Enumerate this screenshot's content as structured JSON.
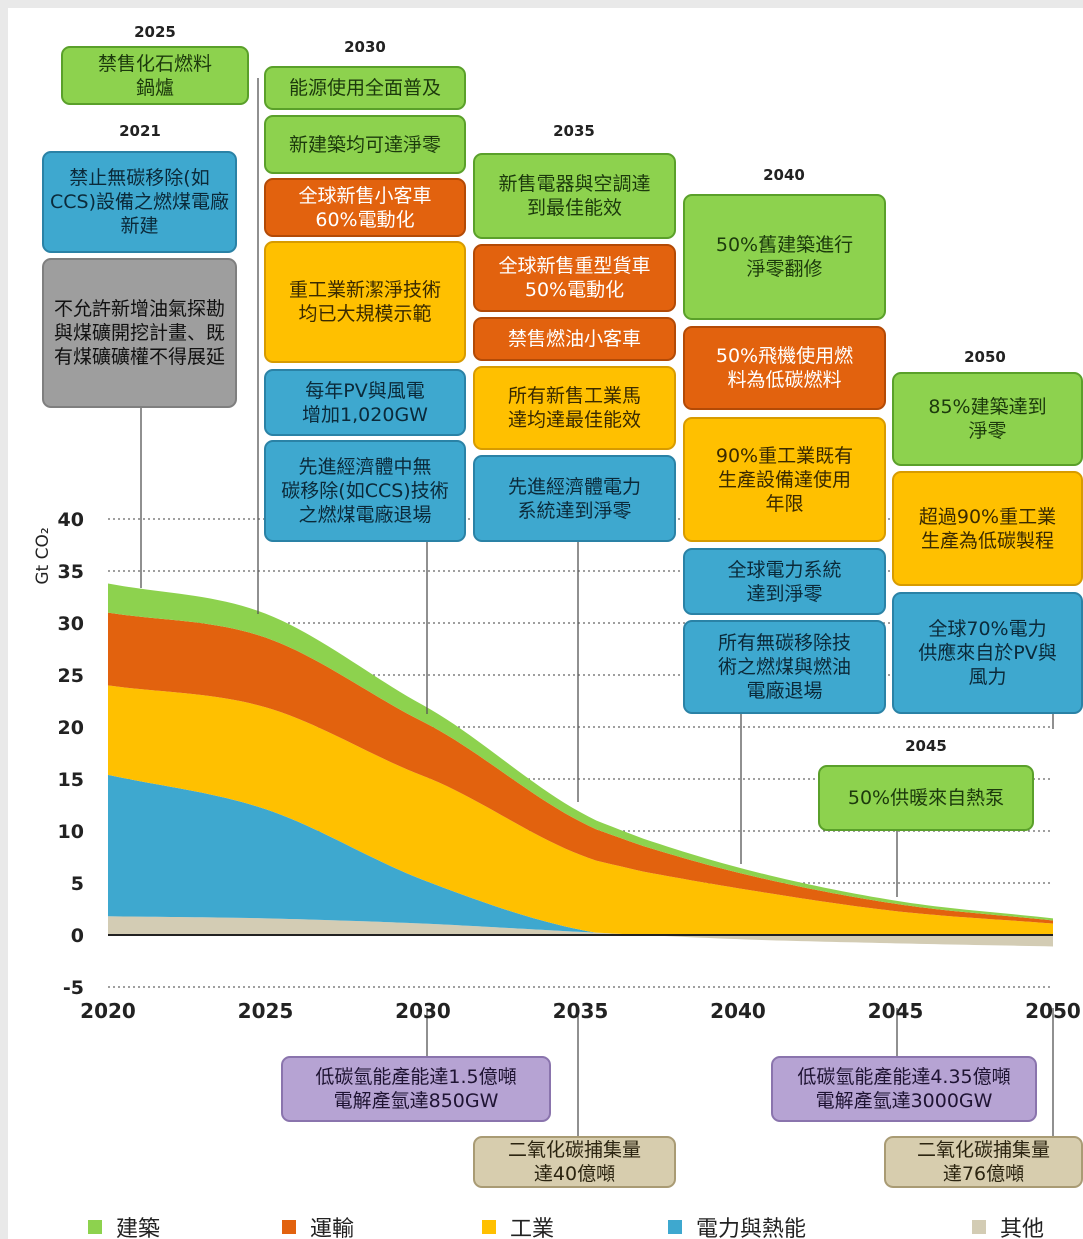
{
  "chart_data": {
    "type": "area",
    "x": [
      2020,
      2025,
      2030,
      2035,
      2040,
      2045,
      2050
    ],
    "xlim": [
      2020,
      2050
    ],
    "ylim": [
      -5,
      40
    ],
    "yticks": [
      40,
      35,
      30,
      25,
      20,
      15,
      10,
      5,
      0,
      -5
    ],
    "ylabel": "Gt CO₂",
    "series": [
      {
        "name": "其他",
        "color": "#d3ccb4",
        "values": [
          1.8,
          1.6,
          1.1,
          0.3,
          -0.4,
          -0.8,
          -1.1
        ]
      },
      {
        "name": "電力與熱能",
        "color": "#3ea8cf",
        "values": [
          13.6,
          10.5,
          4.2,
          0.2,
          -0.5,
          -0.3,
          -0.2
        ]
      },
      {
        "name": "工業",
        "color": "#ffc000",
        "values": [
          8.6,
          9.8,
          10.0,
          7.2,
          4.5,
          2.3,
          1.1
        ]
      },
      {
        "name": "運輸",
        "color": "#e2620e",
        "values": [
          7.0,
          6.7,
          5.2,
          3.2,
          1.5,
          0.7,
          0.3
        ]
      },
      {
        "name": "建築",
        "color": "#8dd24e",
        "values": [
          2.8,
          2.3,
          1.6,
          0.9,
          0.5,
          0.3,
          0.2
        ]
      }
    ],
    "legend": "bottom"
  },
  "years": {
    "y2021": "2021",
    "y2025": "2025",
    "y2030": "2030",
    "y2035": "2035",
    "y2040": "2040",
    "y2045": "2045",
    "y2050": "2050"
  },
  "milestones": {
    "m2025_1": "禁售化石燃料\n鍋爐",
    "m2021_1": "禁止無碳移除(如CCS)設備之燃煤電廠新建",
    "m2021_2": "不允許新增油氣探勘與煤礦開挖計畫、既有煤礦礦權不得展延",
    "m2030_1": "能源使用全面普及",
    "m2030_2": "新建築均可達淨零",
    "m2030_3": "全球新售小客車\n60%電動化",
    "m2030_4": "重工業新潔淨技術\n均已大規模示範",
    "m2030_5": "每年PV與風電\n增加1,020GW",
    "m2030_6": "先進經濟體中無\n碳移除(如CCS)技術\n之燃煤電廠退場",
    "m2035_1": "新售電器與空調達\n到最佳能效",
    "m2035_2": "全球新售重型貨車\n50%電動化",
    "m2035_3": "禁售燃油小客車",
    "m2035_4": "所有新售工業馬\n達均達最佳能效",
    "m2035_5": "先進經濟體電力\n系統達到淨零",
    "m2040_1": "50%舊建築進行\n淨零翻修",
    "m2040_2": "50%飛機使用燃\n料為低碳燃料",
    "m2040_3": "90%重工業既有\n生產設備達使用\n年限",
    "m2040_4": "全球電力系統\n達到淨零",
    "m2040_5": "所有無碳移除技\n術之燃煤與燃油\n電廠退場",
    "m2050_1": "85%建築達到\n淨零",
    "m2050_2": "超過90%重工業\n生產為低碳製程",
    "m2050_3": "全球70%電力\n供應來自於PV與\n風力",
    "m2045_1": "50%供暖來自熱泵",
    "b2030_1": "低碳氫能產能達1.5億噸\n電解產氫達850GW",
    "b2035_1": "二氧化碳捕集量\n達40億噸",
    "b2045_1": "低碳氫能產能達4.35億噸\n電解產氫達3000GW",
    "b2050_1": "二氧化碳捕集量\n達76億噸"
  },
  "legend": {
    "building": "建築",
    "transport": "運輸",
    "industry": "工業",
    "power": "電力與熱能",
    "other": "其他"
  }
}
